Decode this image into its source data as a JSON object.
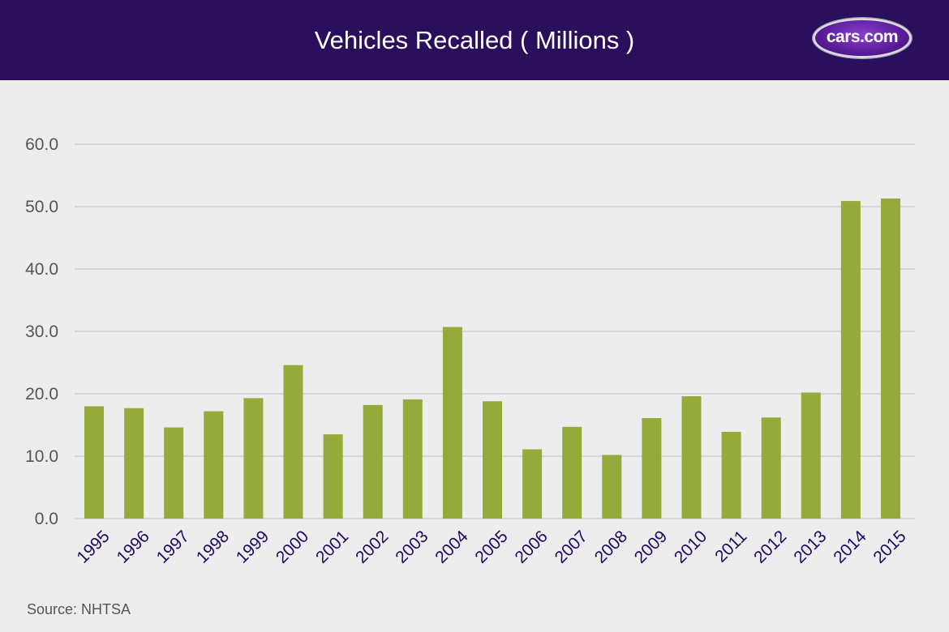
{
  "header": {
    "title": "Vehicles Recalled ( Millions )",
    "logo_text": "cars.com"
  },
  "footer": {
    "source": "Source: NHTSA"
  },
  "colors": {
    "header_bg": "#2a0f5c",
    "bar": "#94aa3b",
    "gridline": "#c8c8c8",
    "y_tick_text": "#555555",
    "x_tick_text": "#1f0a5c"
  },
  "chart_data": {
    "type": "bar",
    "title": "Vehicles Recalled ( Millions )",
    "xlabel": "",
    "ylabel": "",
    "categories": [
      "1995",
      "1996",
      "1997",
      "1998",
      "1999",
      "2000",
      "2001",
      "2002",
      "2003",
      "2004",
      "2005",
      "2006",
      "2007",
      "2008",
      "2009",
      "2010",
      "2011",
      "2012",
      "2013",
      "2014",
      "2015"
    ],
    "values": [
      18.0,
      17.7,
      14.6,
      17.2,
      19.3,
      24.6,
      13.5,
      18.2,
      19.1,
      30.7,
      18.8,
      11.1,
      14.7,
      10.2,
      16.1,
      19.6,
      13.9,
      16.2,
      20.2,
      50.9,
      51.3
    ],
    "ylim": [
      0,
      60
    ],
    "yticks": [
      "0.0",
      "10.0",
      "20.0",
      "30.0",
      "40.0",
      "50.0",
      "60.0"
    ],
    "grid": true,
    "legend": "none"
  }
}
